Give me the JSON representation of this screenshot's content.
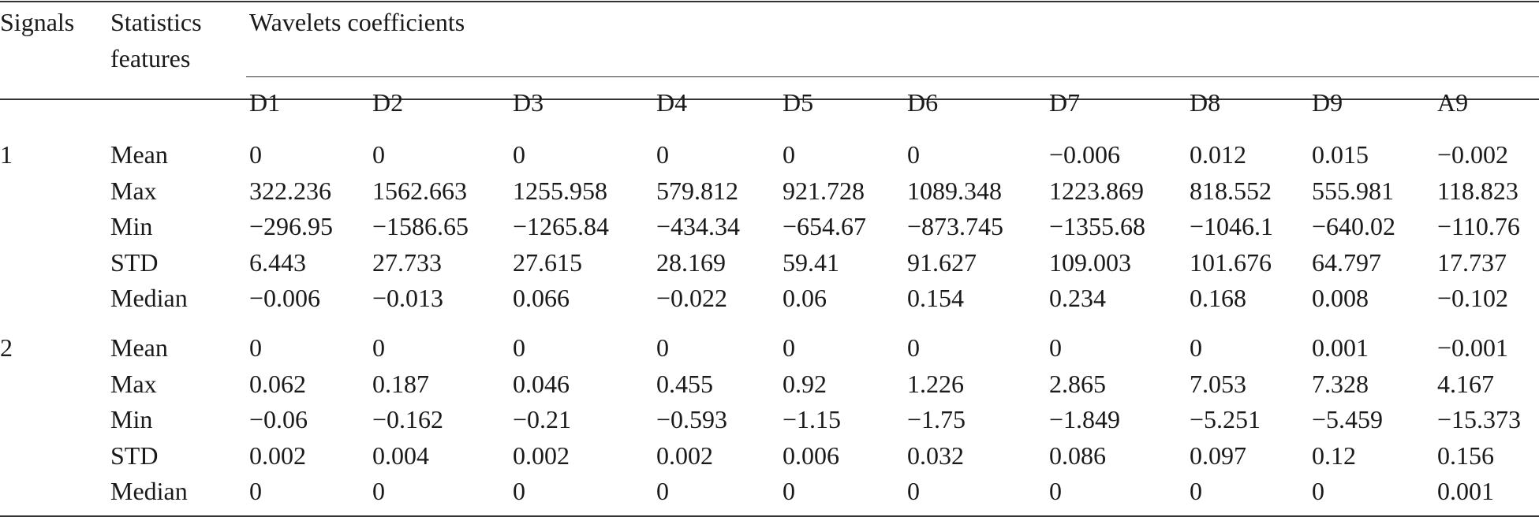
{
  "header": {
    "signals": "Signals",
    "stats_line1": "Statistics",
    "stats_line2": "features",
    "wavelets": "Wavelets coefficients",
    "columns": [
      "D1",
      "D2",
      "D3",
      "D4",
      "D5",
      "D6",
      "D7",
      "D8",
      "D9",
      "A9"
    ]
  },
  "groups": [
    {
      "signal": "1",
      "rows": [
        {
          "feature": "Mean",
          "values": [
            "0",
            "0",
            "0",
            "0",
            "0",
            "0",
            "−0.006",
            "0.012",
            "0.015",
            "−0.002"
          ]
        },
        {
          "feature": "Max",
          "values": [
            "322.236",
            "1562.663",
            "1255.958",
            "579.812",
            "921.728",
            "1089.348",
            "1223.869",
            "818.552",
            "555.981",
            "118.823"
          ]
        },
        {
          "feature": "Min",
          "values": [
            "−296.95",
            "−1586.65",
            "−1265.84",
            "−434.34",
            "−654.67",
            "−873.745",
            "−1355.68",
            "−1046.1",
            "−640.02",
            "−110.76"
          ]
        },
        {
          "feature": "STD",
          "values": [
            "6.443",
            "27.733",
            "27.615",
            "28.169",
            "59.41",
            "91.627",
            "109.003",
            "101.676",
            "64.797",
            "17.737"
          ]
        },
        {
          "feature": "Median",
          "values": [
            "−0.006",
            "−0.013",
            "0.066",
            "−0.022",
            "0.06",
            "0.154",
            "0.234",
            "0.168",
            "0.008",
            "−0.102"
          ]
        }
      ]
    },
    {
      "signal": "2",
      "rows": [
        {
          "feature": "Mean",
          "values": [
            "0",
            "0",
            "0",
            "0",
            "0",
            "0",
            "0",
            "0",
            "0.001",
            "−0.001"
          ]
        },
        {
          "feature": "Max",
          "values": [
            "0.062",
            "0.187",
            "0.046",
            "0.455",
            "0.92",
            "1.226",
            "2.865",
            "7.053",
            "7.328",
            "4.167"
          ]
        },
        {
          "feature": "Min",
          "values": [
            "−0.06",
            "−0.162",
            "−0.21",
            "−0.593",
            "−1.15",
            "−1.75",
            "−1.849",
            "−5.251",
            "−5.459",
            "−15.373"
          ]
        },
        {
          "feature": "STD",
          "values": [
            "0.002",
            "0.004",
            "0.002",
            "0.002",
            "0.006",
            "0.032",
            "0.086",
            "0.097",
            "0.12",
            "0.156"
          ]
        },
        {
          "feature": "Median",
          "values": [
            "0",
            "0",
            "0",
            "0",
            "0",
            "0",
            "0",
            "0",
            "0",
            "0.001"
          ]
        }
      ]
    }
  ]
}
